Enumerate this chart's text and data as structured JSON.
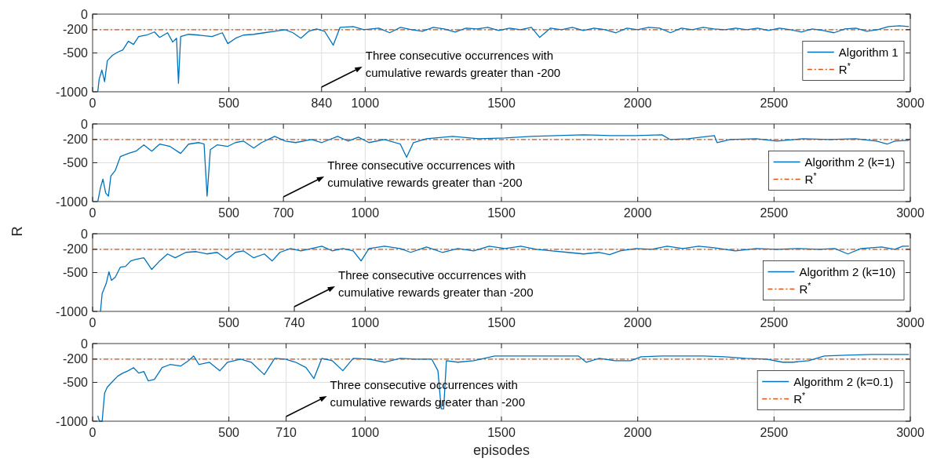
{
  "chart_data": [
    {
      "type": "line",
      "x": [
        19,
        24,
        34,
        44,
        54,
        73,
        92,
        111,
        131,
        150,
        169,
        198,
        227,
        246,
        275,
        294,
        308,
        315,
        323,
        352,
        390,
        438,
        476,
        496,
        525,
        553,
        591,
        630,
        668,
        707,
        735,
        764,
        793,
        822,
        851,
        883,
        908,
        956,
        995,
        1050,
        1090,
        1130,
        1170,
        1210,
        1250,
        1290,
        1330,
        1370,
        1410,
        1450,
        1490,
        1530,
        1570,
        1610,
        1640,
        1680,
        1720,
        1760,
        1800,
        1840,
        1880,
        1920,
        1960,
        2000,
        2040,
        2080,
        2120,
        2160,
        2200,
        2240,
        2280,
        2320,
        2360,
        2400,
        2440,
        2480,
        2520,
        2560,
        2600,
        2640,
        2680,
        2720,
        2760,
        2800,
        2840,
        2880,
        2920,
        2960,
        2995
      ],
      "series": [
        {
          "name": "Algorithm 1",
          "color": "#0072bd",
          "values": [
            -1000,
            -840,
            -720,
            -870,
            -600,
            -530,
            -490,
            -460,
            -350,
            -390,
            -290,
            -270,
            -230,
            -300,
            -240,
            -360,
            -310,
            -890,
            -290,
            -260,
            -270,
            -290,
            -240,
            -380,
            -310,
            -270,
            -260,
            -240,
            -220,
            -200,
            -240,
            -310,
            -220,
            -190,
            -220,
            -400,
            -170,
            -160,
            -200,
            -180,
            -240,
            -170,
            -200,
            -220,
            -170,
            -190,
            -230,
            -180,
            -190,
            -170,
            -210,
            -180,
            -200,
            -170,
            -300,
            -180,
            -200,
            -170,
            -210,
            -180,
            -200,
            -240,
            -180,
            -200,
            -170,
            -180,
            -240,
            -180,
            -200,
            -170,
            -190,
            -200,
            -180,
            -200,
            -180,
            -210,
            -180,
            -200,
            -230,
            -190,
            -210,
            -240,
            -190,
            -180,
            -220,
            -200,
            -160,
            -150,
            -160
          ]
        }
      ],
      "ref_lines": [
        {
          "axis": "y",
          "value": -200,
          "label": "R$^{*}$",
          "color": "#d95319",
          "line_style": "dashed"
        }
      ],
      "xlim": [
        0,
        3000
      ],
      "xticks": [
        0,
        500,
        840,
        1000,
        1500,
        2000,
        2500,
        3000
      ],
      "ylim": [
        -1000,
        0
      ],
      "yticks": [
        0,
        -200,
        -500,
        -1000
      ],
      "grid": true,
      "legend": "right",
      "annotations": [
        "Three consecutive occurrences with\ncumulative rewards greater than -200"
      ]
    },
    {
      "type": "line",
      "x": [
        19,
        29,
        38,
        48,
        58,
        67,
        83,
        102,
        131,
        159,
        188,
        217,
        246,
        284,
        323,
        352,
        390,
        409,
        420,
        432,
        457,
        495,
        524,
        553,
        591,
        620,
        668,
        707,
        745,
        803,
        841,
        899,
        937,
        975,
        1014,
        1071,
        1129,
        1152,
        1177,
        1225,
        1321,
        1417,
        1513,
        1609,
        1705,
        1801,
        1897,
        1993,
        2089,
        2118,
        2185,
        2281,
        2291,
        2339,
        2435,
        2511,
        2607,
        2703,
        2799,
        2876,
        2915,
        2943,
        2995
      ],
      "series": [
        {
          "name": "Algorithm 2 (k=1)",
          "color": "#0072bd",
          "values": [
            -1000,
            -820,
            -710,
            -890,
            -930,
            -670,
            -600,
            -420,
            -380,
            -350,
            -270,
            -350,
            -260,
            -290,
            -380,
            -260,
            -240,
            -260,
            -930,
            -330,
            -270,
            -290,
            -240,
            -220,
            -310,
            -240,
            -160,
            -220,
            -240,
            -200,
            -240,
            -160,
            -220,
            -170,
            -240,
            -200,
            -260,
            -430,
            -240,
            -190,
            -160,
            -190,
            -180,
            -160,
            -150,
            -140,
            -150,
            -150,
            -140,
            -200,
            -190,
            -150,
            -240,
            -200,
            -190,
            -220,
            -190,
            -200,
            -190,
            -220,
            -260,
            -220,
            -210
          ]
        }
      ],
      "ref_lines": [
        {
          "axis": "y",
          "value": -200,
          "label": "R$^{*}$",
          "color": "#d95319",
          "line_style": "dashed"
        }
      ],
      "xlim": [
        0,
        3000
      ],
      "xticks": [
        0,
        500,
        700,
        1000,
        1500,
        2000,
        2500,
        3000
      ],
      "ylim": [
        -1000,
        0
      ],
      "yticks": [
        0,
        -200,
        -500,
        -1000
      ],
      "grid": true,
      "legend": "right",
      "ylabel": "R",
      "annotations": [
        "Three consecutive occurrences with\ncumulative rewards greater than -200"
      ]
    },
    {
      "type": "line",
      "x": [
        29,
        35,
        50,
        60,
        69,
        83,
        102,
        121,
        140,
        159,
        188,
        217,
        246,
        275,
        303,
        342,
        380,
        419,
        457,
        492,
        524,
        553,
        591,
        630,
        659,
        687,
        726,
        764,
        803,
        841,
        879,
        918,
        956,
        985,
        1014,
        1071,
        1129,
        1167,
        1225,
        1283,
        1340,
        1398,
        1455,
        1513,
        1571,
        1628,
        1686,
        1743,
        1801,
        1859,
        1897,
        1935,
        1993,
        2051,
        2108,
        2166,
        2223,
        2281,
        2358,
        2435,
        2511,
        2588,
        2665,
        2723,
        2771,
        2819,
        2895,
        2943,
        2972,
        2995
      ],
      "series": [
        {
          "name": "Algorithm 2 (k=10)",
          "color": "#0072bd",
          "values": [
            -1000,
            -770,
            -640,
            -490,
            -600,
            -560,
            -430,
            -420,
            -350,
            -330,
            -310,
            -460,
            -350,
            -260,
            -310,
            -240,
            -230,
            -260,
            -240,
            -330,
            -240,
            -220,
            -310,
            -260,
            -350,
            -240,
            -190,
            -220,
            -190,
            -160,
            -220,
            -190,
            -220,
            -350,
            -190,
            -160,
            -190,
            -240,
            -170,
            -240,
            -190,
            -220,
            -160,
            -190,
            -160,
            -200,
            -220,
            -240,
            -260,
            -240,
            -270,
            -220,
            -190,
            -200,
            -160,
            -190,
            -160,
            -180,
            -220,
            -190,
            -200,
            -190,
            -200,
            -190,
            -260,
            -190,
            -170,
            -200,
            -160,
            -160
          ]
        }
      ],
      "ref_lines": [
        {
          "axis": "y",
          "value": -200,
          "label": "R$^{*}$",
          "color": "#d95319",
          "line_style": "dashed"
        }
      ],
      "xlim": [
        0,
        3000
      ],
      "xticks": [
        0,
        500,
        740,
        1000,
        1500,
        2000,
        2500,
        3000
      ],
      "ylim": [
        -1000,
        0
      ],
      "yticks": [
        0,
        -200,
        -500,
        -1000
      ],
      "grid": true,
      "legend": "right",
      "annotations": [
        "Three consecutive occurrences with\ncumulative rewards greater than -200"
      ]
    },
    {
      "type": "line",
      "x": [
        19,
        25,
        35,
        44,
        54,
        73,
        92,
        111,
        131,
        150,
        169,
        188,
        204,
        227,
        255,
        284,
        323,
        352,
        371,
        390,
        428,
        467,
        495,
        543,
        582,
        630,
        668,
        707,
        745,
        783,
        812,
        841,
        879,
        918,
        956,
        1014,
        1071,
        1129,
        1187,
        1244,
        1267,
        1279,
        1288,
        1298,
        1340,
        1398,
        1475,
        1571,
        1667,
        1782,
        1811,
        1859,
        1916,
        1974,
        2012,
        2089,
        2166,
        2243,
        2319,
        2396,
        2473,
        2531,
        2569,
        2627,
        2684,
        2761,
        2857,
        2943,
        2995
      ],
      "series": [
        {
          "name": "Algorithm 2 (k=0.1)",
          "color": "#0072bd",
          "values": [
            -930,
            -1000,
            -1000,
            -640,
            -560,
            -490,
            -420,
            -380,
            -350,
            -310,
            -380,
            -360,
            -480,
            -460,
            -310,
            -270,
            -290,
            -220,
            -160,
            -270,
            -240,
            -350,
            -240,
            -200,
            -240,
            -400,
            -190,
            -200,
            -240,
            -310,
            -450,
            -190,
            -220,
            -350,
            -190,
            -200,
            -240,
            -190,
            -200,
            -200,
            -350,
            -840,
            -840,
            -220,
            -240,
            -220,
            -160,
            -160,
            -160,
            -160,
            -240,
            -190,
            -220,
            -220,
            -170,
            -160,
            -160,
            -160,
            -170,
            -190,
            -200,
            -240,
            -240,
            -220,
            -160,
            -150,
            -140,
            -140,
            -140
          ]
        }
      ],
      "ref_lines": [
        {
          "axis": "y",
          "value": -200,
          "label": "R$^{*}$",
          "color": "#d95319",
          "line_style": "dashed"
        }
      ],
      "xlim": [
        0,
        3000
      ],
      "xticks": [
        0,
        500,
        710,
        1000,
        1500,
        2000,
        2500,
        3000
      ],
      "ylim": [
        -1000,
        0
      ],
      "yticks": [
        0,
        -200,
        -500,
        -1000
      ],
      "grid": true,
      "legend": "right",
      "xlabel": "episodes",
      "annotations": [
        "Three consecutive occurrences with\ncumulative rewards greater than -200"
      ]
    }
  ]
}
